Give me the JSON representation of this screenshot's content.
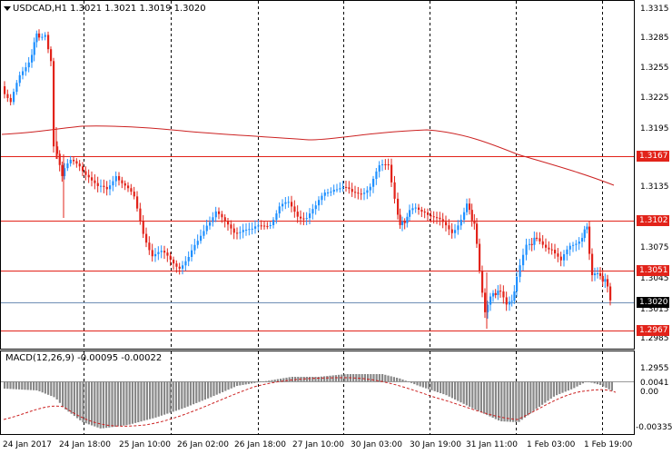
{
  "main_chart": {
    "title": "USDCAD,H1  1.3021 1.3021 1.3019 1.3020",
    "price_labels": [
      "1.3315",
      "1.3285",
      "1.3255",
      "1.3225",
      "1.3195",
      "1.3135",
      "1.3075",
      "1.3045",
      "1.3015",
      "1.2985",
      "1.2955"
    ],
    "levels": [
      "1.3167",
      "1.3102",
      "1.3051",
      "1.2967"
    ],
    "current_price": "1.3020",
    "colors": {
      "bull": "#1e90ff",
      "bear": "#e2231a",
      "ma": "#cc2222",
      "level": "#e2231a",
      "current": "#6f8fb5"
    }
  },
  "macd": {
    "title": "MACD(12,26,9) -0.00095 -0.00022",
    "labels": [
      "0.0041",
      "0.00",
      "-0.00335"
    ]
  },
  "time_axis": [
    "24 Jan 2017",
    "24 Jan 18:00",
    "25 Jan 10:00",
    "26 Jan 02:00",
    "26 Jan 18:00",
    "27 Jan 10:00",
    "30 Jan 03:00",
    "30 Jan 19:00",
    "31 Jan 11:00",
    "1 Feb 03:00",
    "1 Feb 19:00"
  ]
}
